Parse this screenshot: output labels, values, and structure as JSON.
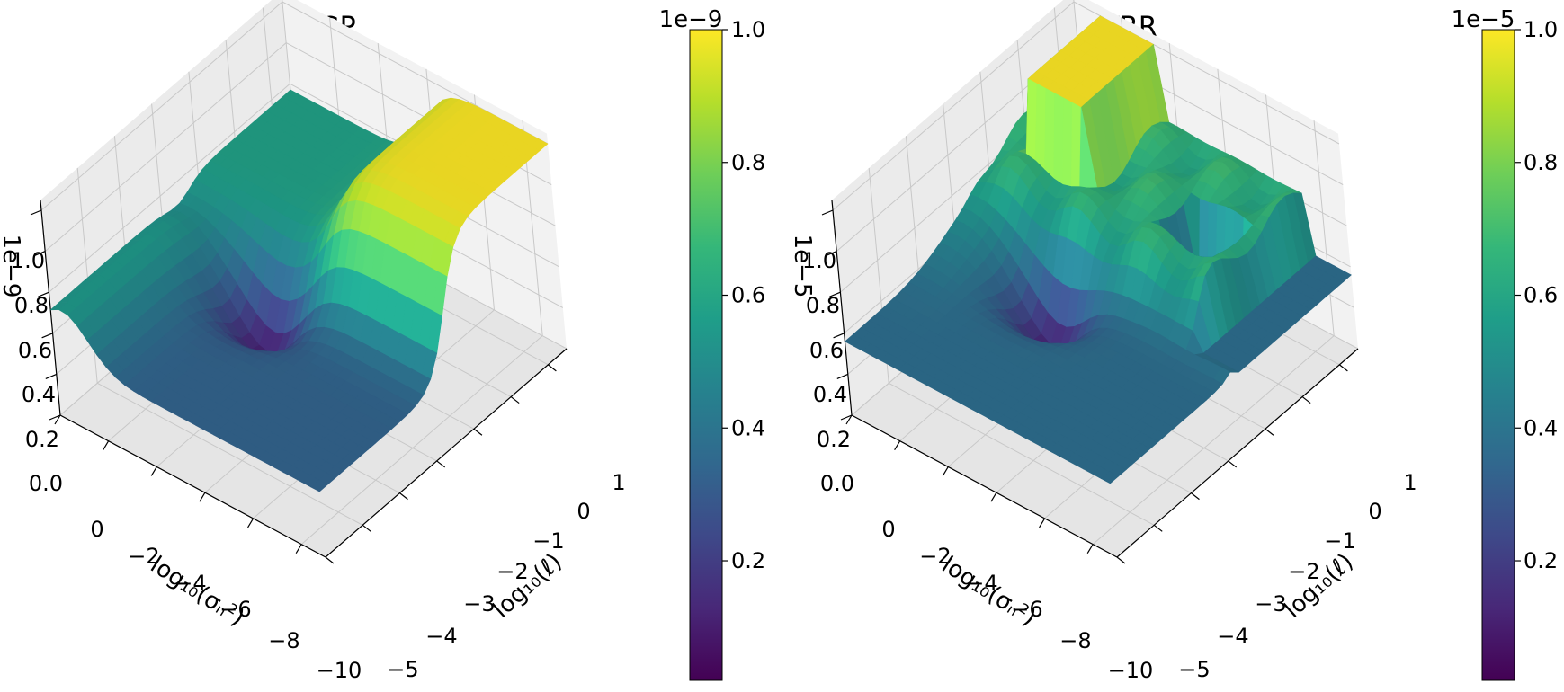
{
  "colors": {
    "pane_left": "#ebebeb",
    "pane_right": "#f2f2f2",
    "pane_floor": "#e5e5e5",
    "grid": "#c8c8c8",
    "colormap": [
      "#440154",
      "#482878",
      "#3e4989",
      "#31688e",
      "#26828e",
      "#1f9e89",
      "#35b779",
      "#6ece58",
      "#b5de2b",
      "#fde725"
    ]
  },
  "chart_data": [
    {
      "type": "surface3d",
      "title": "GP",
      "xlabel": "log₁₀(σₙ²)",
      "ylabel": "log₁₀(ℓ)",
      "x_ticks": [
        "0",
        "−2",
        "−4",
        "−6",
        "−8",
        "−10"
      ],
      "y_ticks": [
        "−5",
        "−4",
        "−3",
        "−2",
        "−1",
        "0",
        "1"
      ],
      "z_ticks": [
        "0.0",
        "0.2",
        "0.4",
        "0.6",
        "0.8",
        "1.0"
      ],
      "z_offset": "1e−9",
      "xlim": [
        -10,
        1
      ],
      "ylim": [
        -5,
        1.5
      ],
      "zlim": [
        0,
        1
      ],
      "grid": true,
      "colorbar": {
        "offset": "1e−9",
        "ticks": [
          "0.2",
          "0.4",
          "0.6",
          "0.8",
          "1.0"
        ],
        "tick_values": [
          0.2,
          0.4,
          0.6,
          0.8,
          1.0
        ],
        "range": [
          0.02,
          1.0
        ]
      },
      "surface": {
        "model": "gp",
        "wall_at_log_ell": -1.5,
        "plateau": 1.0,
        "ridge": 0.57,
        "valley_min": 0.08,
        "floor": 0.32
      }
    },
    {
      "type": "surface3d",
      "title": "KRR",
      "xlabel": "log₁₀(σₙ²)",
      "ylabel": "log₁₀(ℓ)",
      "x_ticks": [
        "0",
        "−2",
        "−4",
        "−6",
        "−8",
        "−10"
      ],
      "y_ticks": [
        "−5",
        "−4",
        "−3",
        "−2",
        "−1",
        "0",
        "1"
      ],
      "z_ticks": [
        "0.0",
        "0.2",
        "0.4",
        "0.6",
        "0.8",
        "1.0"
      ],
      "z_offset": "1e−5",
      "xlim": [
        -10,
        1
      ],
      "ylim": [
        -5,
        1.5
      ],
      "zlim": [
        0,
        1
      ],
      "grid": true,
      "colorbar": {
        "offset": "1e−5",
        "ticks": [
          "0.2",
          "0.4",
          "0.6",
          "0.8",
          "1.0"
        ],
        "tick_values": [
          0.2,
          0.4,
          0.6,
          0.8,
          1.0
        ],
        "range": [
          0.02,
          1.0
        ]
      },
      "surface": {
        "model": "krr",
        "wall_at_log_ell": -1.5,
        "plateau": 1.0,
        "ridge": 0.6,
        "valley_min": 0.08,
        "floor": 0.36
      }
    }
  ]
}
